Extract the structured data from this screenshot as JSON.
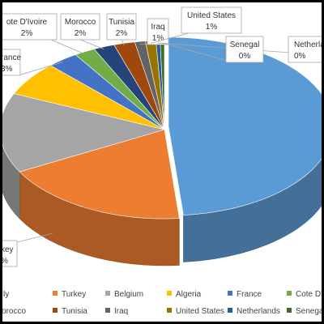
{
  "chart_data": {
    "type": "pie",
    "style": "3d-exploded-first-slice",
    "categories": [
      "Italy",
      "Turkey",
      "Belgium",
      "Algeria",
      "France",
      "Cote D'Ivoire",
      "Morocco",
      "Tunisia",
      "Iraq",
      "United States",
      "Netherlands",
      "Senegal"
    ],
    "values": [
      47,
      18,
      14,
      6,
      3,
      2,
      2,
      2,
      1,
      1,
      0.4,
      0.4
    ],
    "colors": [
      "#5B9BD5",
      "#ED7D31",
      "#A5A5A5",
      "#FFC000",
      "#4472C4",
      "#70AD47",
      "#264478",
      "#9E480E",
      "#636363",
      "#997300",
      "#255E91",
      "#43682B"
    ],
    "labels": [
      {
        "category": "Italy",
        "name": "",
        "pct": ""
      },
      {
        "category": "Turkey",
        "name": "key",
        "pct": "%"
      },
      {
        "category": "Belgium",
        "name": "",
        "pct": ""
      },
      {
        "category": "Algeria",
        "name": "",
        "pct": ""
      },
      {
        "category": "France",
        "name": "rance",
        "pct": "3%"
      },
      {
        "category": "Cote D'Ivoire",
        "name": "ote D'Ivoire",
        "pct": "2%"
      },
      {
        "category": "Morocco",
        "name": "Morocco",
        "pct": "2%"
      },
      {
        "category": "Tunisia",
        "name": "Tunisia",
        "pct": "2%"
      },
      {
        "category": "Iraq",
        "name": "Iraq",
        "pct": "1%"
      },
      {
        "category": "United States",
        "name": "United States",
        "pct": "1%"
      },
      {
        "category": "Netherlands",
        "name": "Netherlan",
        "pct": "0%"
      },
      {
        "category": "Senegal",
        "name": "Senegal",
        "pct": "0%"
      }
    ],
    "legend": {
      "placement": "bottom",
      "entries": [
        "ly",
        "Turkey",
        "Belgium",
        "Algeria",
        "France",
        "Cote D'Iv",
        "orocco",
        "Tunisia",
        "Iraq",
        "United States",
        "Netherlands",
        "Senegal"
      ]
    }
  }
}
